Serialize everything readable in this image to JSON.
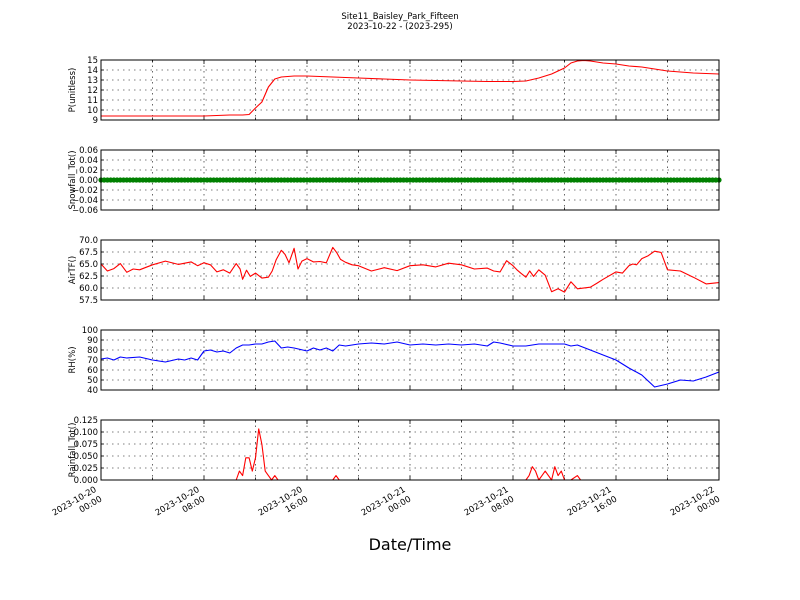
{
  "figure": {
    "title_line1": "Site11_Baisley_Park_Fifteen",
    "title_line2": "2023-10-22 - (2023-295)",
    "xlabel": "Date/Time",
    "x_ticks": [
      {
        "l1": "2023-10-20",
        "l2": "00:00"
      },
      {
        "l1": "2023-10-20",
        "l2": "08:00"
      },
      {
        "l1": "2023-10-20",
        "l2": "16:00"
      },
      {
        "l1": "2023-10-21",
        "l2": "00:00"
      },
      {
        "l1": "2023-10-21",
        "l2": "08:00"
      },
      {
        "l1": "2023-10-21",
        "l2": "16:00"
      },
      {
        "l1": "2023-10-22",
        "l2": "00:00"
      }
    ]
  },
  "chart_data": [
    {
      "type": "line",
      "ylabel": "P(unitless)",
      "ylim": [
        9,
        15
      ],
      "yticks": [
        "9",
        "10",
        "11",
        "12",
        "13",
        "14",
        "15"
      ],
      "grid": true,
      "color": "#ff0000",
      "series": [
        {
          "x": [
            0,
            4,
            6,
            8,
            10,
            11,
            11.5,
            12,
            12.5,
            13,
            13.5,
            14,
            15,
            16,
            18,
            20,
            22,
            24,
            26,
            28,
            30,
            32,
            33,
            34,
            35,
            36,
            36.5,
            37,
            37.5,
            38,
            39,
            40,
            41,
            42,
            44,
            46,
            48
          ],
          "y": [
            9.4,
            9.4,
            9.4,
            9.4,
            9.5,
            9.5,
            9.55,
            10.2,
            10.8,
            12.3,
            13.1,
            13.3,
            13.4,
            13.4,
            13.3,
            13.2,
            13.1,
            13.0,
            12.95,
            12.9,
            12.85,
            12.85,
            12.9,
            13.2,
            13.6,
            14.2,
            14.7,
            14.9,
            14.95,
            14.9,
            14.7,
            14.6,
            14.4,
            14.3,
            13.9,
            13.7,
            13.6
          ]
        }
      ]
    },
    {
      "type": "scatter",
      "ylabel": "Snowfall_Tot()",
      "ylim": [
        -0.06,
        0.06
      ],
      "yticks": [
        "−0.06",
        "−0.04",
        "−0.02",
        "0.00",
        "0.02",
        "0.04",
        "0.06"
      ],
      "grid": true,
      "color": "#008000",
      "series": [
        {
          "x_start": 0,
          "x_end": 48,
          "x_step": 0.25,
          "value": 0
        }
      ]
    },
    {
      "type": "line",
      "ylabel": "AirTF()",
      "ylim": [
        55.5,
        70.0
      ],
      "yticks": [
        "57.5",
        "60.0",
        "62.5",
        "65.0",
        "67.5",
        "70.0"
      ],
      "grid": true,
      "color": "#ff0000",
      "series": [
        {
          "x": [
            0,
            0.5,
            1,
            1.5,
            2,
            2.5,
            3,
            4,
            5,
            6,
            7,
            7.5,
            8,
            8.5,
            9,
            9.5,
            10,
            10.5,
            10.8,
            11,
            11.3,
            11.6,
            12,
            12.5,
            13,
            13.3,
            13.6,
            14,
            14.3,
            14.6,
            15,
            15.3,
            15.6,
            16,
            16.5,
            17,
            17.5,
            18,
            18.3,
            18.6,
            19,
            19.5,
            20,
            21,
            22,
            23,
            24,
            25,
            26,
            27,
            28,
            29,
            30,
            30.5,
            31,
            31.5,
            32,
            32.3,
            32.6,
            33,
            33.3,
            33.6,
            34,
            34.5,
            35,
            35.5,
            36,
            36.5,
            37,
            38,
            38.5,
            39,
            40,
            40.5,
            41,
            41.3,
            41.6,
            42,
            42.5,
            43,
            43.5,
            44,
            45,
            46,
            47,
            48
          ],
          "y": [
            64.2,
            62.5,
            63.1,
            64.3,
            62.2,
            63.0,
            62.8,
            64.0,
            64.9,
            64.1,
            64.7,
            63.8,
            64.5,
            64.0,
            62.3,
            62.8,
            62.0,
            64.3,
            63.0,
            60.5,
            62.7,
            61.2,
            62.0,
            60.8,
            61.0,
            62.5,
            65.2,
            67.5,
            66.5,
            64.5,
            68.0,
            63.0,
            64.9,
            65.5,
            64.7,
            64.8,
            64.5,
            68.2,
            67.0,
            65.3,
            64.6,
            64.0,
            63.8,
            62.5,
            63.3,
            62.6,
            63.8,
            64.0,
            63.5,
            64.4,
            64.0,
            63.0,
            63.2,
            62.5,
            62.3,
            65.0,
            63.8,
            62.8,
            62.0,
            61.0,
            62.5,
            61.2,
            62.8,
            61.5,
            57.5,
            58.2,
            57.4,
            59.9,
            58.2,
            58.6,
            59.5,
            60.5,
            62.3,
            62.0,
            63.8,
            64.2,
            64.0,
            65.5,
            66.2,
            67.3,
            67.0,
            62.8,
            62.5,
            61.0,
            59.4,
            59.7
          ]
        }
      ]
    },
    {
      "type": "line",
      "ylabel": "RH(%)",
      "ylim": [
        40,
        100
      ],
      "yticks": [
        "40",
        "50",
        "60",
        "70",
        "80",
        "90",
        "100"
      ],
      "grid": true,
      "color": "#0000ff",
      "series": [
        {
          "x": [
            0,
            0.5,
            1,
            1.5,
            2,
            3,
            4,
            5,
            6,
            6.5,
            7,
            7.5,
            8,
            8.5,
            9,
            9.5,
            10,
            10.5,
            11,
            11.5,
            12,
            12.5,
            13,
            13.5,
            14,
            14.5,
            15,
            16,
            16.5,
            17,
            17.5,
            18,
            18.5,
            19,
            20,
            21,
            22,
            23,
            24,
            25,
            26,
            27,
            28,
            29,
            30,
            30.5,
            31,
            32,
            33,
            34,
            35,
            36,
            36.5,
            37,
            38,
            39,
            40,
            41,
            42,
            43,
            44,
            45,
            46,
            47,
            48
          ],
          "y": [
            71,
            72,
            70,
            73,
            72,
            73,
            70,
            68,
            71,
            70,
            72,
            70,
            79,
            80,
            78,
            79,
            77,
            82,
            85,
            85,
            86,
            86,
            88,
            89,
            82,
            83,
            82,
            79,
            82,
            80,
            82,
            79,
            85,
            84,
            86,
            87,
            86,
            88,
            85,
            86,
            85,
            86,
            85,
            86,
            84,
            88,
            87,
            84,
            84,
            86,
            86,
            86,
            84,
            85,
            80,
            75,
            70,
            62,
            55,
            43,
            46,
            50,
            49,
            53,
            58
          ]
        }
      ]
    },
    {
      "type": "line",
      "ylabel": "Rainfall_Tot()",
      "ylim": [
        0,
        0.135
      ],
      "yticks": [
        "0.000",
        "0.025",
        "0.050",
        "0.075",
        "0.100",
        "0.125"
      ],
      "grid": true,
      "color": "#ff0000",
      "series": [
        {
          "x": [
            0,
            10.5,
            10.75,
            11,
            11.25,
            11.5,
            11.75,
            12,
            12.25,
            12.5,
            12.75,
            13,
            13.25,
            13.5,
            13.75,
            14,
            18,
            18.25,
            18.5,
            33,
            33.25,
            33.5,
            33.75,
            34,
            34.25,
            34.5,
            34.75,
            35,
            35.25,
            35.5,
            35.75,
            36,
            36.5,
            37,
            37.25,
            37.5,
            48
          ],
          "y": [
            0,
            0,
            0.02,
            0.01,
            0.05,
            0.05,
            0.02,
            0.05,
            0.115,
            0.08,
            0.02,
            0.01,
            0,
            0.01,
            0,
            0,
            0,
            0.01,
            0,
            0,
            0.01,
            0.03,
            0.02,
            0,
            0.01,
            0.02,
            0.01,
            0,
            0.03,
            0.01,
            0.02,
            0,
            0,
            0.01,
            0,
            0,
            0
          ]
        }
      ]
    }
  ]
}
